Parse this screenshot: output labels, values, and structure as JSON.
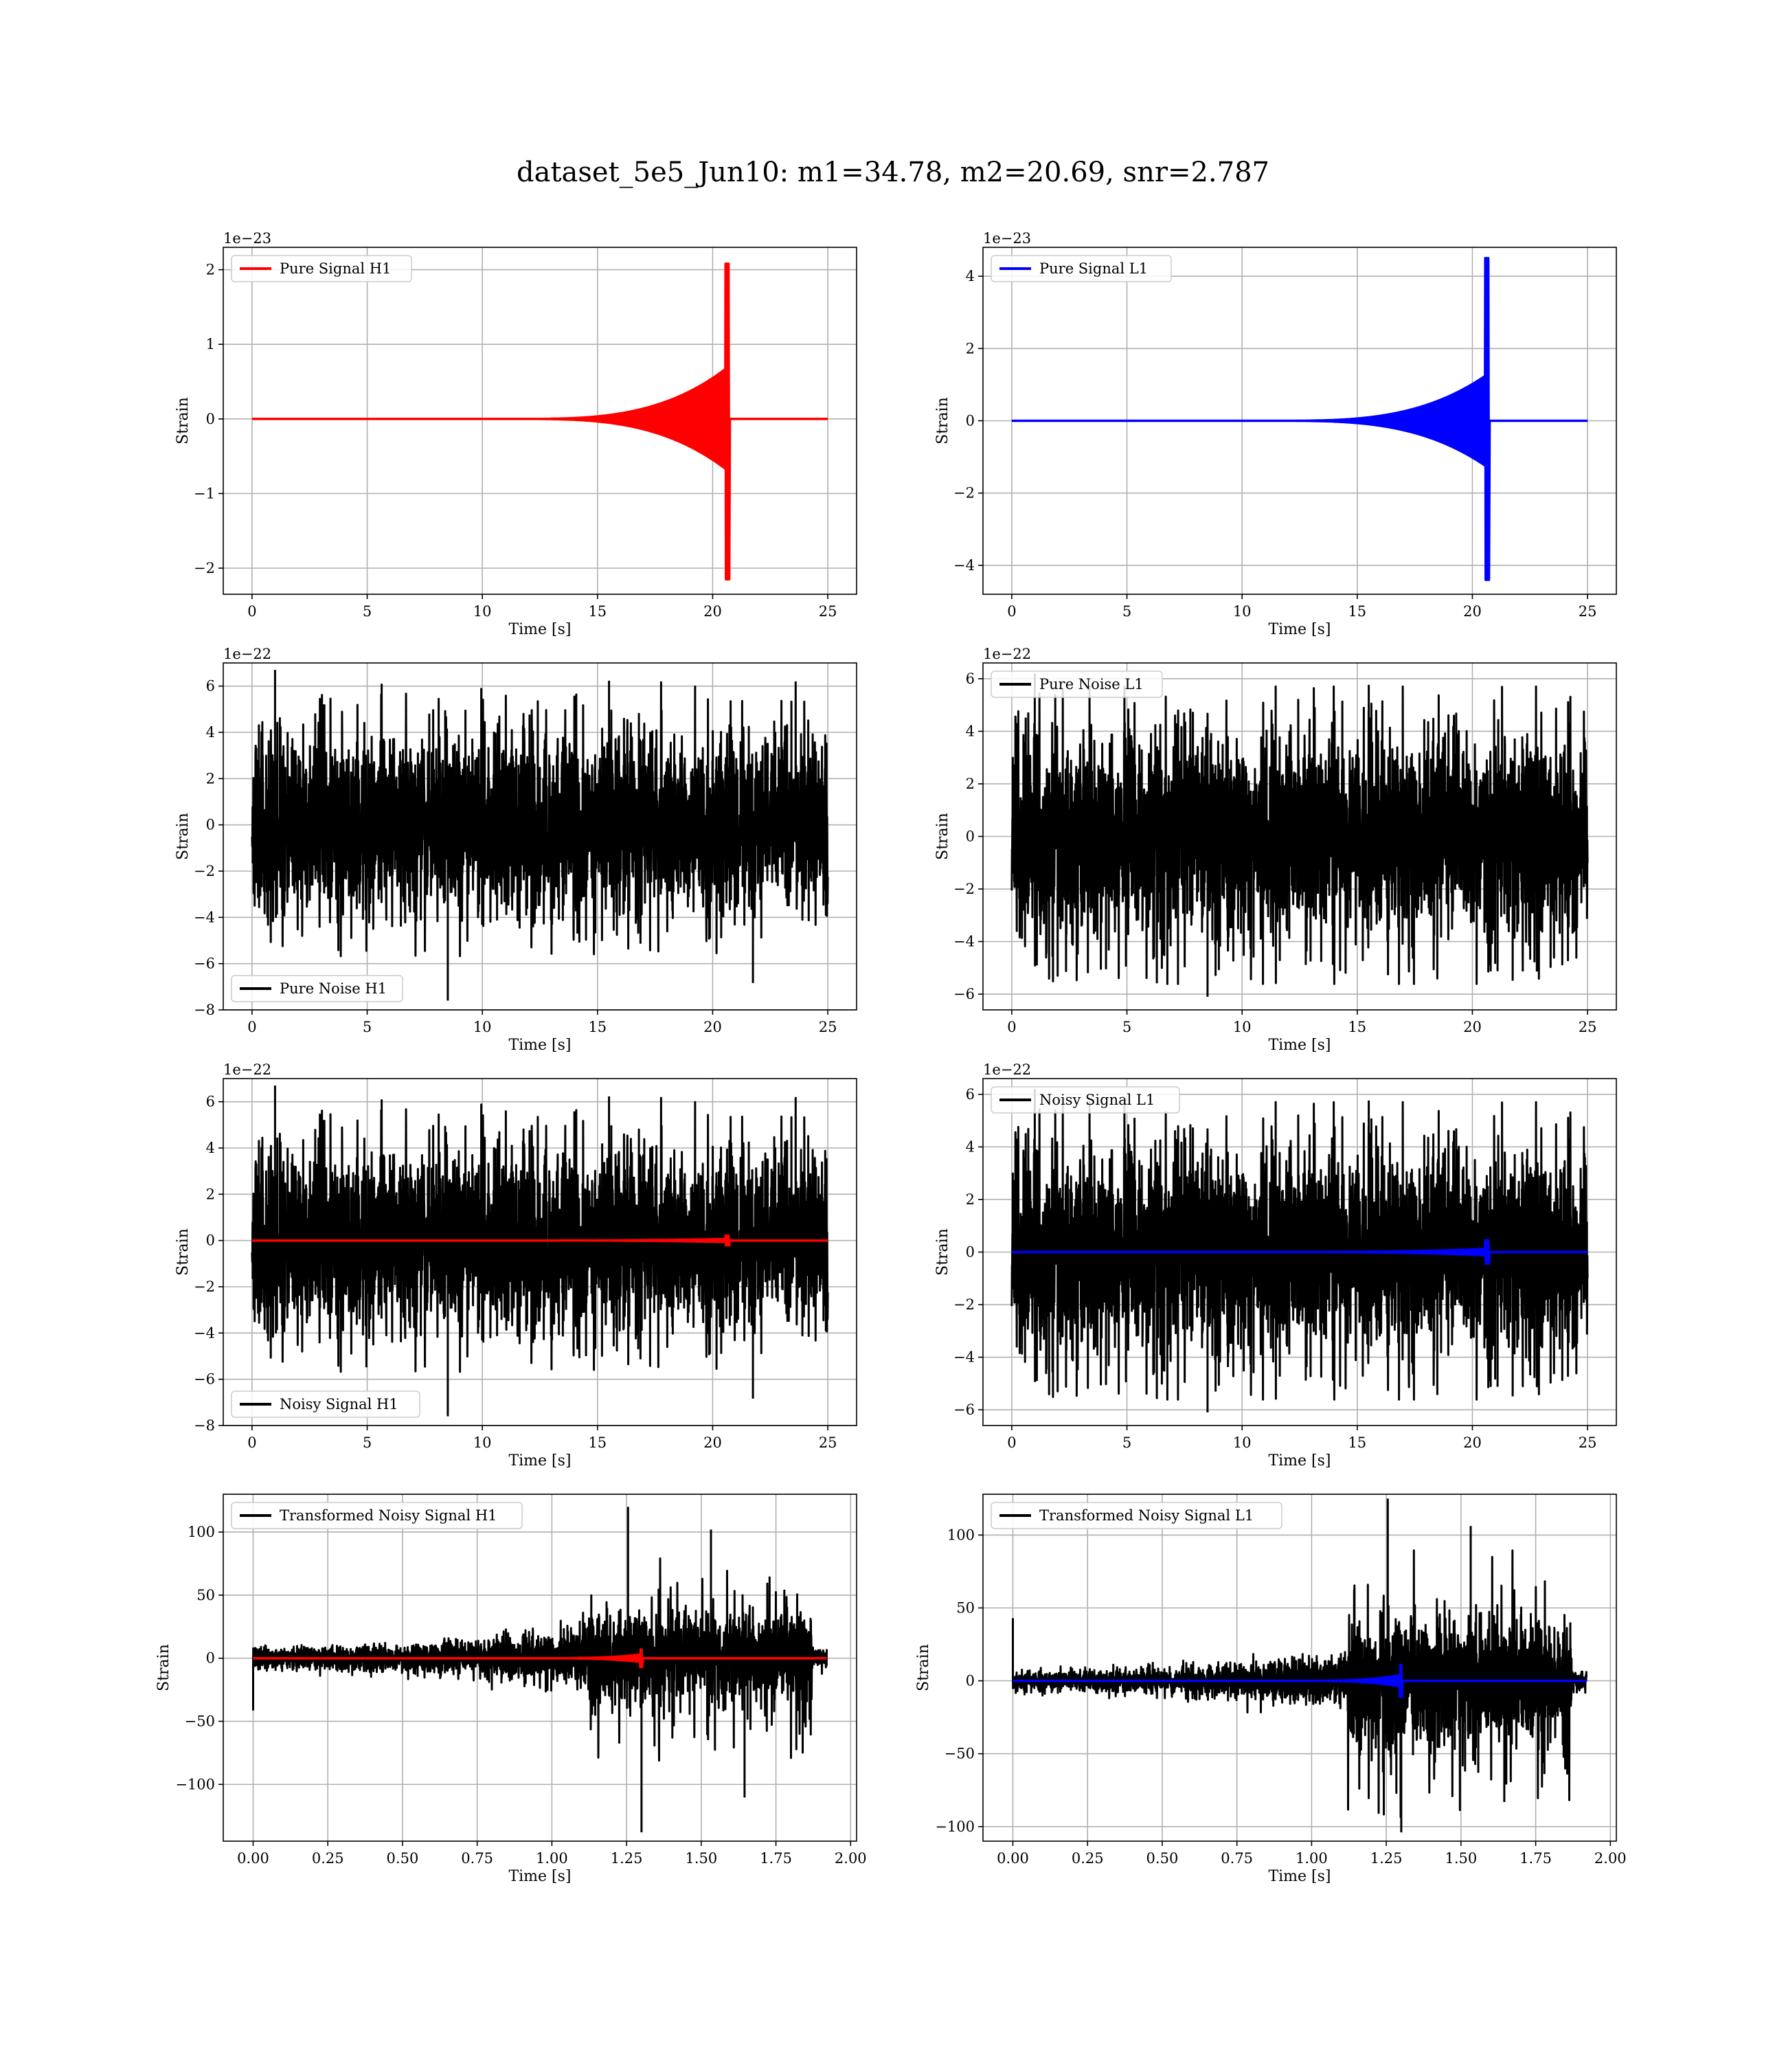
{
  "figure": {
    "title": "dataset_5e5_Jun10: m1=34.78, m2=20.69, snr=2.787",
    "colors": {
      "signal_h1": "#ff0000",
      "signal_l1": "#0000ff",
      "noise": "#000000",
      "grid": "#b0b0b0"
    }
  },
  "chart_data": [
    {
      "id": "pure-signal-h1",
      "type": "line",
      "xlabel": "Time [s]",
      "ylabel": "Strain",
      "offset_text": "1e−23",
      "xlim": [
        -1.25,
        26.25
      ],
      "ylim": [
        -2.35,
        2.3
      ],
      "xticks": [
        0,
        5,
        10,
        15,
        20,
        25
      ],
      "xtick_labels": [
        "0",
        "5",
        "10",
        "15",
        "20",
        "25"
      ],
      "yticks": [
        -2,
        -1,
        0,
        1,
        2
      ],
      "ytick_labels": [
        "−2",
        "−1",
        "0",
        "1",
        "2"
      ],
      "legend": {
        "placement": "upper-left"
      },
      "grid": true,
      "series": [
        {
          "name": "Pure Signal H1",
          "kind": "chirp",
          "color": "#ff0000",
          "t_start": 0,
          "t_end": 25,
          "t_merge": 20.69,
          "peak_pos": 2.08,
          "peak_neg": -2.15,
          "pre_merge_level": 0.7
        }
      ]
    },
    {
      "id": "pure-signal-l1",
      "type": "line",
      "xlabel": "Time [s]",
      "ylabel": "Strain",
      "offset_text": "1e−23",
      "xlim": [
        -1.25,
        26.25
      ],
      "ylim": [
        -4.8,
        4.8
      ],
      "xticks": [
        0,
        5,
        10,
        15,
        20,
        25
      ],
      "xtick_labels": [
        "0",
        "5",
        "10",
        "15",
        "20",
        "25"
      ],
      "yticks": [
        -4,
        -2,
        0,
        2,
        4
      ],
      "ytick_labels": [
        "−4",
        "−2",
        "0",
        "2",
        "4"
      ],
      "legend": {
        "placement": "upper-left"
      },
      "grid": true,
      "series": [
        {
          "name": "Pure Signal L1",
          "kind": "chirp",
          "color": "#0000ff",
          "t_start": 0,
          "t_end": 25,
          "t_merge": 20.69,
          "peak_pos": 4.5,
          "peak_neg": -4.4,
          "pre_merge_level": 1.3
        }
      ]
    },
    {
      "id": "pure-noise-h1",
      "type": "line",
      "xlabel": "Time [s]",
      "ylabel": "Strain",
      "offset_text": "1e−22",
      "xlim": [
        -1.25,
        26.25
      ],
      "ylim": [
        -8.0,
        7.0
      ],
      "xticks": [
        0,
        5,
        10,
        15,
        20,
        25
      ],
      "xtick_labels": [
        "0",
        "5",
        "10",
        "15",
        "20",
        "25"
      ],
      "yticks": [
        -8,
        -6,
        -4,
        -2,
        0,
        2,
        4,
        6
      ],
      "ytick_labels": [
        "−8",
        "−6",
        "−4",
        "−2",
        "0",
        "2",
        "4",
        "6"
      ],
      "legend": {
        "placement": "lower-left"
      },
      "grid": true,
      "series": [
        {
          "name": "Pure Noise H1",
          "kind": "noise",
          "color": "#000000",
          "t_start": 0,
          "t_end": 25,
          "core": 3.0,
          "max": 6.7,
          "min": -7.6,
          "seed": 11
        }
      ]
    },
    {
      "id": "pure-noise-l1",
      "type": "line",
      "xlabel": "Time [s]",
      "ylabel": "Strain",
      "offset_text": "1e−22",
      "xlim": [
        -1.25,
        26.25
      ],
      "ylim": [
        -6.6,
        6.6
      ],
      "xticks": [
        0,
        5,
        10,
        15,
        20,
        25
      ],
      "xtick_labels": [
        "0",
        "5",
        "10",
        "15",
        "20",
        "25"
      ],
      "yticks": [
        -6,
        -4,
        -2,
        0,
        2,
        4,
        6
      ],
      "ytick_labels": [
        "−6",
        "−4",
        "−2",
        "0",
        "2",
        "4",
        "6"
      ],
      "legend": {
        "placement": "upper-left"
      },
      "grid": true,
      "series": [
        {
          "name": "Pure Noise L1",
          "kind": "noise",
          "color": "#000000",
          "t_start": 0,
          "t_end": 25,
          "core": 3.0,
          "max": 6.2,
          "min": -6.1,
          "seed": 23
        }
      ]
    },
    {
      "id": "noisy-signal-h1",
      "type": "line",
      "xlabel": "Time [s]",
      "ylabel": "Strain",
      "offset_text": "1e−22",
      "xlim": [
        -1.25,
        26.25
      ],
      "ylim": [
        -8.0,
        7.0
      ],
      "xticks": [
        0,
        5,
        10,
        15,
        20,
        25
      ],
      "xtick_labels": [
        "0",
        "5",
        "10",
        "15",
        "20",
        "25"
      ],
      "yticks": [
        -8,
        -6,
        -4,
        -2,
        0,
        2,
        4,
        6
      ],
      "ytick_labels": [
        "−8",
        "−6",
        "−4",
        "−2",
        "0",
        "2",
        "4",
        "6"
      ],
      "legend": {
        "placement": "lower-left"
      },
      "grid": true,
      "series": [
        {
          "name": "Noisy Signal H1",
          "kind": "noise",
          "color": "#000000",
          "t_start": 0,
          "t_end": 25,
          "core": 3.0,
          "max": 6.7,
          "min": -7.6,
          "seed": 11
        },
        {
          "name": "",
          "kind": "chirp",
          "color": "#ff0000",
          "t_start": 0,
          "t_end": 25,
          "t_merge": 20.69,
          "peak_pos": 0.21,
          "peak_neg": -0.21,
          "pre_merge_level": 0.07
        }
      ]
    },
    {
      "id": "noisy-signal-l1",
      "type": "line",
      "xlabel": "Time [s]",
      "ylabel": "Strain",
      "offset_text": "1e−22",
      "xlim": [
        -1.25,
        26.25
      ],
      "ylim": [
        -6.6,
        6.6
      ],
      "xticks": [
        0,
        5,
        10,
        15,
        20,
        25
      ],
      "xtick_labels": [
        "0",
        "5",
        "10",
        "15",
        "20",
        "25"
      ],
      "yticks": [
        -6,
        -4,
        -2,
        0,
        2,
        4,
        6
      ],
      "ytick_labels": [
        "−6",
        "−4",
        "−2",
        "0",
        "2",
        "4",
        "6"
      ],
      "legend": {
        "placement": "upper-left"
      },
      "grid": true,
      "series": [
        {
          "name": "Noisy Signal L1",
          "kind": "noise",
          "color": "#000000",
          "t_start": 0,
          "t_end": 25,
          "core": 3.0,
          "max": 6.2,
          "min": -6.1,
          "seed": 23
        },
        {
          "name": "",
          "kind": "chirp",
          "color": "#0000ff",
          "t_start": 0,
          "t_end": 25,
          "t_merge": 20.69,
          "peak_pos": 0.45,
          "peak_neg": -0.44,
          "pre_merge_level": 0.13
        }
      ]
    },
    {
      "id": "transformed-h1",
      "type": "line",
      "xlabel": "Time [s]",
      "ylabel": "Strain",
      "offset_text": "",
      "xlim": [
        -0.1,
        2.02
      ],
      "ylim": [
        -145,
        130
      ],
      "xticks": [
        0,
        0.25,
        0.5,
        0.75,
        1.0,
        1.25,
        1.5,
        1.75,
        2.0
      ],
      "xtick_labels": [
        "0.00",
        "0.25",
        "0.50",
        "0.75",
        "1.00",
        "1.25",
        "1.50",
        "1.75",
        "2.00"
      ],
      "yticks": [
        -100,
        -50,
        0,
        50,
        100
      ],
      "ytick_labels": [
        "−100",
        "−50",
        "0",
        "50",
        "100"
      ],
      "legend": {
        "placement": "upper-left"
      },
      "grid": true,
      "series": [
        {
          "name": "Transformed Noisy Signal H1",
          "kind": "whitened",
          "color": "#000000",
          "t_start": 0,
          "t_end": 1.92,
          "t_burst": 1.12,
          "t_burst_end": 1.87,
          "core": 48,
          "max": 120,
          "min": -138,
          "pre": 6,
          "seed": 37
        },
        {
          "name": "",
          "kind": "chirp",
          "color": "#ff0000",
          "t_start": 0,
          "t_end": 1.92,
          "t_merge": 1.3,
          "t_from": 0.95,
          "peak_pos": 7,
          "peak_neg": -7,
          "pre_merge_level": 3
        }
      ]
    },
    {
      "id": "transformed-l1",
      "type": "line",
      "xlabel": "Time [s]",
      "ylabel": "Strain",
      "offset_text": "",
      "xlim": [
        -0.1,
        2.02
      ],
      "ylim": [
        -110,
        128
      ],
      "xticks": [
        0,
        0.25,
        0.5,
        0.75,
        1.0,
        1.25,
        1.5,
        1.75,
        2.0
      ],
      "xtick_labels": [
        "0.00",
        "0.25",
        "0.50",
        "0.75",
        "1.00",
        "1.25",
        "1.50",
        "1.75",
        "2.00"
      ],
      "yticks": [
        -100,
        -50,
        0,
        50,
        100
      ],
      "ytick_labels": [
        "−100",
        "−50",
        "0",
        "50",
        "100"
      ],
      "legend": {
        "placement": "upper-left"
      },
      "grid": true,
      "series": [
        {
          "name": "Transformed Noisy Signal L1",
          "kind": "whitened",
          "color": "#000000",
          "t_start": 0,
          "t_end": 1.92,
          "t_burst": 1.12,
          "t_burst_end": 1.87,
          "core": 55,
          "max": 125,
          "min": -104,
          "pre": 5,
          "spike0": 43,
          "seed": 53
        },
        {
          "name": "",
          "kind": "chirp",
          "color": "#0000ff",
          "t_start": 0,
          "t_end": 1.92,
          "t_merge": 1.3,
          "t_from": 0.95,
          "peak_pos": 11,
          "peak_neg": -11,
          "pre_merge_level": 4
        }
      ]
    }
  ]
}
